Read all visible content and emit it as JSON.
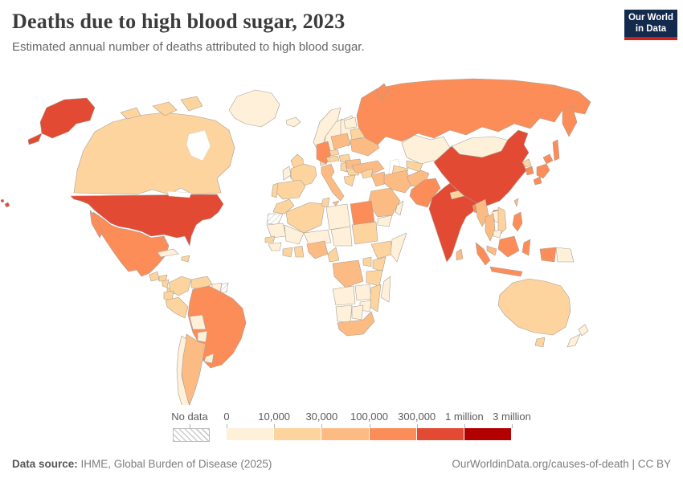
{
  "header": {
    "title": "Deaths due to high blood sugar, 2023",
    "subtitle": "Estimated annual number of deaths attributed to high blood sugar.",
    "logo_line1": "Our World",
    "logo_line2": "in Data",
    "logo_bg_color": "#142a4d",
    "logo_accent_color": "#cd201e"
  },
  "legend": {
    "no_data_label": "No data",
    "tick_labels": [
      "0",
      "10,000",
      "30,000",
      "100,000",
      "300,000",
      "1 million",
      "3 million"
    ]
  },
  "footer": {
    "source_label": "Data source:",
    "source_text": " IHME, Global Burden of Disease (2025)",
    "right_text": "OurWorldinData.org/causes-of-death | CC BY"
  },
  "chart_data": {
    "type": "choropleth_map",
    "title": "Deaths due to high blood sugar, 2023",
    "subtitle": "Estimated annual number of deaths attributed to high blood sugar.",
    "year": "2023",
    "unit": "deaths",
    "legend_position": "bottom",
    "bins": [
      {
        "range": "0-10,000",
        "color": "#fef0d9"
      },
      {
        "range": "10,000-30,000",
        "color": "#fdd49e"
      },
      {
        "range": "30,000-100,000",
        "color": "#fdbb84"
      },
      {
        "range": "100,000-300,000",
        "color": "#fc8d59"
      },
      {
        "range": "300,000-1 million",
        "color": "#e34a33"
      },
      {
        "range": "1 million-3 million",
        "color": "#b30000"
      }
    ],
    "no_data": {
      "label": "No data",
      "style": "diagonal-hatch"
    },
    "countries": {
      "United States": "300,000-1 million",
      "China": "300,000-1 million",
      "India": "300,000-1 million",
      "Mexico": "100,000-300,000",
      "Brazil": "100,000-300,000",
      "Russia": "100,000-300,000",
      "Germany": "100,000-300,000",
      "Egypt": "100,000-300,000",
      "Pakistan": "100,000-300,000",
      "Bangladesh": "100,000-300,000",
      "Indonesia": "100,000-300,000",
      "Japan": "100,000-300,000",
      "South Korea": "100,000-300,000",
      "Philippines": "100,000-300,000",
      "Argentina": "30,000-100,000",
      "Italy": "30,000-100,000",
      "Poland": "30,000-100,000",
      "Ukraine": "30,000-100,000",
      "Romania": "30,000-100,000",
      "Turkey": "30,000-100,000",
      "Iran": "30,000-100,000",
      "Iraq": "30,000-100,000",
      "Saudi Arabia": "30,000-100,000",
      "Afghanistan": "30,000-100,000",
      "Nigeria": "30,000-100,000",
      "Democratic Republic of Congo": "30,000-100,000",
      "South Africa": "30,000-100,000",
      "Myanmar": "30,000-100,000",
      "Thailand": "30,000-100,000",
      "Malaysia": "30,000-100,000",
      "Sri Lanka": "30,000-100,000",
      "Taiwan": "30,000-100,000",
      "Canada": "10,000-30,000",
      "Guatemala": "10,000-30,000",
      "Honduras": "10,000-30,000",
      "Nicaragua": "10,000-30,000",
      "Costa Rica": "10,000-30,000",
      "Dominican Republic": "10,000-30,000",
      "Colombia": "10,000-30,000",
      "Venezuela": "10,000-30,000",
      "Ecuador": "10,000-30,000",
      "Peru": "10,000-30,000",
      "United Kingdom": "10,000-30,000",
      "France": "10,000-30,000",
      "Spain": "10,000-30,000",
      "Portugal": "10,000-30,000",
      "Denmark": "10,000-30,000",
      "Czechia": "10,000-30,000",
      "Austria": "10,000-30,000",
      "Hungary": "10,000-30,000",
      "Serbia": "10,000-30,000",
      "Bulgaria": "10,000-30,000",
      "Greece": "10,000-30,000",
      "Belarus": "10,000-30,000",
      "Morocco": "10,000-30,000",
      "Algeria": "10,000-30,000",
      "Tunisia": "10,000-30,000",
      "Senegal": "10,000-30,000",
      "Ivory Coast": "10,000-30,000",
      "Ghana": "10,000-30,000",
      "Cameroon": "10,000-30,000",
      "Sudan": "10,000-30,000",
      "Ethiopia": "10,000-30,000",
      "Kenya": "10,000-30,000",
      "Uganda": "10,000-30,000",
      "Tanzania": "10,000-30,000",
      "Mozambique": "10,000-30,000",
      "Syria": "10,000-30,000",
      "Uzbekistan": "10,000-30,000",
      "Turkmenistan": "10,000-30,000",
      "Nepal": "10,000-30,000",
      "Vietnam": "10,000-30,000",
      "North Korea": "10,000-30,000",
      "Australia": "10,000-30,000",
      "Greenland": "0-10,000",
      "Iceland": "0-10,000",
      "Norway": "0-10,000",
      "Sweden": "0-10,000",
      "Finland": "0-10,000",
      "Ireland": "0-10,000",
      "Lithuania": "0-10,000",
      "Kazakhstan": "0-10,000",
      "Mongolia": "0-10,000",
      "Libya": "0-10,000",
      "Mauritania": "0-10,000",
      "Mali": "0-10,000",
      "Niger": "0-10,000",
      "Chad": "0-10,000",
      "Guinea": "0-10,000",
      "Somalia": "0-10,000",
      "Angola": "0-10,000",
      "Zambia": "0-10,000",
      "Zimbabwe": "0-10,000",
      "Namibia": "0-10,000",
      "Botswana": "0-10,000",
      "Madagascar": "0-10,000",
      "Yemen": "0-10,000",
      "Oman": "0-10,000",
      "Laos": "0-10,000",
      "Cambodia": "0-10,000",
      "Papua New Guinea": "0-10,000",
      "New Zealand": "0-10,000",
      "Bolivia": "0-10,000",
      "Paraguay": "0-10,000",
      "Uruguay": "0-10,000",
      "Chile": "0-10,000",
      "Cuba": "0-10,000",
      "Guyana": "0-10,000"
    }
  }
}
